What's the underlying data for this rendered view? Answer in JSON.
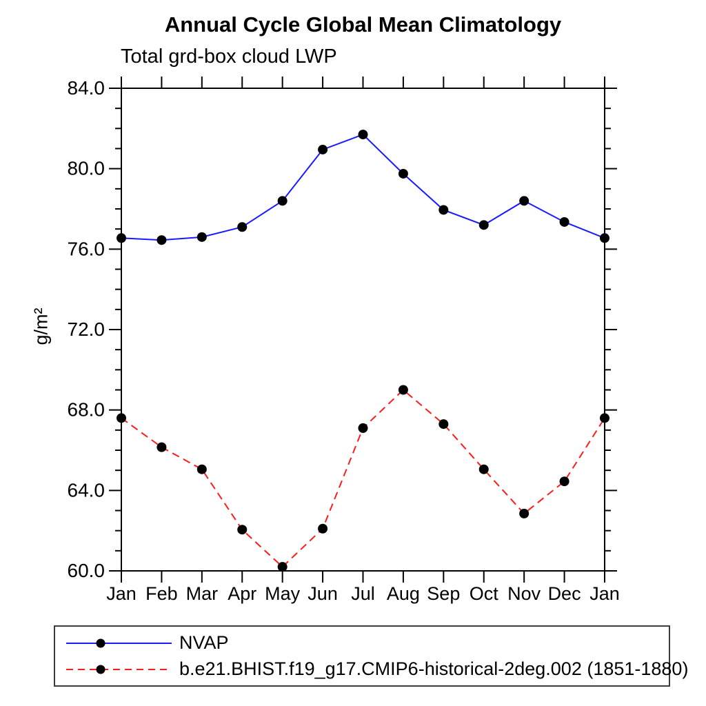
{
  "page": {
    "background": "#ffffff",
    "axis_color": "#000000",
    "text_color": "#000000"
  },
  "chart": {
    "title": "Annual Cycle Global Mean Climatology",
    "subtitle": "Total grd-box cloud LWP",
    "ylabel": "g/m²"
  },
  "chart_data": {
    "type": "line",
    "title": "Annual Cycle Global Mean Climatology",
    "subtitle": "Total grd-box cloud LWP",
    "xlabel": "",
    "ylabel": "g/m²",
    "categories": [
      "Jan",
      "Feb",
      "Mar",
      "Apr",
      "May",
      "Jun",
      "Jul",
      "Aug",
      "Sep",
      "Oct",
      "Nov",
      "Dec",
      "Jan"
    ],
    "ylim": [
      60.0,
      84.0
    ],
    "ytick_major_interval": 4.0,
    "ytick_minor_interval": 1.0,
    "ytick_labels": [
      "60.0",
      "64.0",
      "68.0",
      "72.0",
      "76.0",
      "80.0",
      "84.0"
    ],
    "grid": false,
    "legend_position": "bottom",
    "series": [
      {
        "name": "NVAP",
        "color": "#1a1aff",
        "line_style": "solid",
        "marker": "filled-circle",
        "marker_color": "#000000",
        "values": [
          76.55,
          76.45,
          76.6,
          77.1,
          78.4,
          80.95,
          81.7,
          79.75,
          77.95,
          77.2,
          78.4,
          77.35,
          76.55
        ]
      },
      {
        "name": "b.e21.BHIST.f19_g17.CMIP6-historical-2deg.002 (1851-1880)",
        "color": "#ff1a1a",
        "line_style": "dashed",
        "marker": "filled-circle",
        "marker_color": "#000000",
        "values": [
          67.6,
          66.15,
          65.05,
          62.05,
          60.2,
          62.1,
          67.1,
          69.0,
          67.3,
          65.05,
          62.85,
          64.45,
          67.6
        ]
      }
    ]
  }
}
